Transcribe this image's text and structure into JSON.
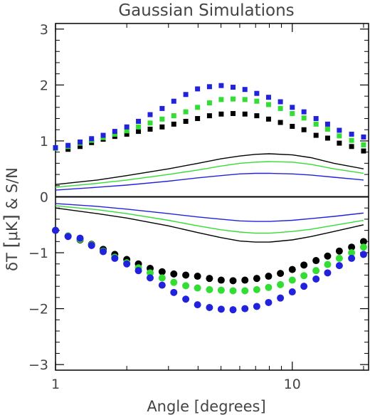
{
  "chart_data": {
    "type": "scatter",
    "title": "Gaussian Simulations",
    "xlabel": "Angle [degrees]",
    "ylabel_parts": [
      "δT ",
      "[",
      "μK",
      "]",
      " & S/N"
    ],
    "xscale": "log",
    "xlim": [
      1,
      21
    ],
    "ylim": [
      -3.1,
      3.1
    ],
    "x_ticks": [
      1,
      10
    ],
    "x_tick_labels": [
      "1",
      "10"
    ],
    "y_ticks": [
      -3,
      -2,
      -1,
      0,
      1,
      2,
      3
    ],
    "y_tick_labels": [
      "−3",
      "−2",
      "−1",
      "0",
      "1",
      "2",
      "3"
    ],
    "zero_line": true,
    "grid": false,
    "legend": "none",
    "colors": {
      "black": "#000000",
      "green": "#33dd33",
      "blue": "#2222dd"
    },
    "marker_series": [
      {
        "color": "black",
        "marker": "square",
        "x": [
          1,
          1.13,
          1.27,
          1.42,
          1.59,
          1.78,
          2.0,
          2.24,
          2.51,
          2.82,
          3.16,
          3.55,
          3.98,
          4.47,
          5.01,
          5.62,
          6.31,
          7.08,
          7.94,
          8.91,
          10.0,
          11.2,
          12.6,
          14.1,
          15.8,
          17.8,
          20.0
        ],
        "y": [
          0.87,
          0.85,
          0.9,
          0.97,
          1.03,
          1.08,
          1.12,
          1.17,
          1.21,
          1.25,
          1.3,
          1.35,
          1.4,
          1.45,
          1.48,
          1.49,
          1.48,
          1.45,
          1.39,
          1.33,
          1.26,
          1.2,
          1.1,
          1.05,
          0.96,
          0.9,
          0.82
        ]
      },
      {
        "color": "green",
        "marker": "square",
        "x": [
          1,
          1.13,
          1.27,
          1.42,
          1.59,
          1.78,
          2.0,
          2.24,
          2.51,
          2.82,
          3.16,
          3.55,
          3.98,
          4.47,
          5.01,
          5.62,
          6.31,
          7.08,
          7.94,
          8.91,
          10.0,
          11.2,
          12.6,
          14.1,
          15.8,
          17.8,
          20.0
        ],
        "y": [
          0.87,
          0.9,
          0.96,
          1.01,
          1.06,
          1.12,
          1.18,
          1.25,
          1.32,
          1.39,
          1.45,
          1.52,
          1.6,
          1.68,
          1.74,
          1.75,
          1.74,
          1.71,
          1.65,
          1.58,
          1.49,
          1.41,
          1.3,
          1.21,
          1.09,
          1.01,
          0.93
        ]
      },
      {
        "color": "blue",
        "marker": "square",
        "x": [
          1,
          1.13,
          1.27,
          1.42,
          1.59,
          1.78,
          2.0,
          2.24,
          2.51,
          2.82,
          3.16,
          3.55,
          3.98,
          4.47,
          5.01,
          5.62,
          6.31,
          7.08,
          7.94,
          8.91,
          10.0,
          11.2,
          12.6,
          14.1,
          15.8,
          17.8,
          20.0
        ],
        "y": [
          0.88,
          0.92,
          0.98,
          1.04,
          1.1,
          1.17,
          1.25,
          1.35,
          1.47,
          1.58,
          1.71,
          1.83,
          1.93,
          1.97,
          1.99,
          1.96,
          1.92,
          1.85,
          1.78,
          1.7,
          1.6,
          1.52,
          1.4,
          1.3,
          1.19,
          1.12,
          1.07
        ]
      },
      {
        "color": "black",
        "marker": "circle",
        "x": [
          1,
          1.13,
          1.27,
          1.42,
          1.59,
          1.78,
          2.0,
          2.24,
          2.51,
          2.82,
          3.16,
          3.55,
          3.98,
          4.47,
          5.01,
          5.62,
          6.31,
          7.08,
          7.94,
          8.91,
          10.0,
          11.2,
          12.6,
          14.1,
          15.8,
          17.8,
          20.0
        ],
        "y": [
          -0.6,
          -0.7,
          -0.77,
          -0.85,
          -0.94,
          -1.03,
          -1.12,
          -1.2,
          -1.28,
          -1.34,
          -1.38,
          -1.4,
          -1.42,
          -1.46,
          -1.49,
          -1.5,
          -1.49,
          -1.46,
          -1.42,
          -1.37,
          -1.3,
          -1.22,
          -1.14,
          -1.06,
          -0.97,
          -0.9,
          -0.8
        ]
      },
      {
        "color": "green",
        "marker": "circle",
        "x": [
          1,
          1.13,
          1.27,
          1.42,
          1.59,
          1.78,
          2.0,
          2.24,
          2.51,
          2.82,
          3.16,
          3.55,
          3.98,
          4.47,
          5.01,
          5.62,
          6.31,
          7.08,
          7.94,
          8.91,
          10.0,
          11.2,
          12.6,
          14.1,
          15.8,
          17.8,
          20.0
        ],
        "y": [
          -0.6,
          -0.7,
          -0.76,
          -0.86,
          -0.97,
          -1.08,
          -1.18,
          -1.27,
          -1.36,
          -1.45,
          -1.53,
          -1.59,
          -1.63,
          -1.66,
          -1.67,
          -1.68,
          -1.68,
          -1.66,
          -1.62,
          -1.57,
          -1.49,
          -1.41,
          -1.32,
          -1.21,
          -1.1,
          -1.0,
          -0.9
        ]
      },
      {
        "color": "blue",
        "marker": "circle",
        "x": [
          1,
          1.13,
          1.27,
          1.42,
          1.59,
          1.78,
          2.0,
          2.24,
          2.51,
          2.82,
          3.16,
          3.55,
          3.98,
          4.47,
          5.01,
          5.62,
          6.31,
          7.08,
          7.94,
          8.91,
          10.0,
          11.2,
          12.6,
          14.1,
          15.8,
          17.8,
          20.0
        ],
        "y": [
          -0.6,
          -0.71,
          -0.74,
          -0.87,
          -0.98,
          -1.1,
          -1.2,
          -1.32,
          -1.45,
          -1.58,
          -1.71,
          -1.83,
          -1.93,
          -1.98,
          -2.01,
          -2.02,
          -2.0,
          -1.96,
          -1.89,
          -1.81,
          -1.7,
          -1.6,
          -1.47,
          -1.36,
          -1.23,
          -1.1,
          -1.03
        ]
      }
    ],
    "line_series": [
      {
        "color": "black",
        "x": [
          1,
          1.5,
          2,
          3,
          4,
          5,
          6,
          7,
          8,
          10,
          12,
          15,
          20
        ],
        "y": [
          0.22,
          0.3,
          0.38,
          0.5,
          0.6,
          0.68,
          0.73,
          0.76,
          0.77,
          0.75,
          0.7,
          0.6,
          0.5
        ]
      },
      {
        "color": "green",
        "x": [
          1,
          1.5,
          2,
          3,
          4,
          5,
          6,
          7,
          8,
          10,
          12,
          15,
          20
        ],
        "y": [
          0.17,
          0.24,
          0.3,
          0.4,
          0.48,
          0.55,
          0.6,
          0.62,
          0.63,
          0.62,
          0.58,
          0.5,
          0.42
        ]
      },
      {
        "color": "blue",
        "x": [
          1,
          1.5,
          2,
          3,
          4,
          5,
          6,
          7,
          8,
          10,
          12,
          15,
          20
        ],
        "y": [
          0.12,
          0.17,
          0.21,
          0.28,
          0.34,
          0.38,
          0.41,
          0.42,
          0.42,
          0.41,
          0.39,
          0.35,
          0.3
        ]
      },
      {
        "color": "blue",
        "x": [
          1,
          1.5,
          2,
          3,
          4,
          5,
          6,
          7,
          8,
          10,
          12,
          15,
          20
        ],
        "y": [
          -0.12,
          -0.17,
          -0.22,
          -0.3,
          -0.36,
          -0.4,
          -0.43,
          -0.44,
          -0.44,
          -0.42,
          -0.39,
          -0.35,
          -0.29
        ]
      },
      {
        "color": "green",
        "x": [
          1,
          1.5,
          2,
          3,
          4,
          5,
          6,
          7,
          8,
          10,
          12,
          15,
          20
        ],
        "y": [
          -0.16,
          -0.23,
          -0.3,
          -0.42,
          -0.52,
          -0.59,
          -0.63,
          -0.65,
          -0.65,
          -0.62,
          -0.58,
          -0.51,
          -0.42
        ]
      },
      {
        "color": "black",
        "x": [
          1,
          1.5,
          2,
          3,
          4,
          5,
          6,
          7,
          8,
          10,
          12,
          15,
          20
        ],
        "y": [
          -0.2,
          -0.3,
          -0.38,
          -0.52,
          -0.64,
          -0.73,
          -0.79,
          -0.81,
          -0.81,
          -0.77,
          -0.71,
          -0.62,
          -0.5
        ]
      }
    ]
  }
}
